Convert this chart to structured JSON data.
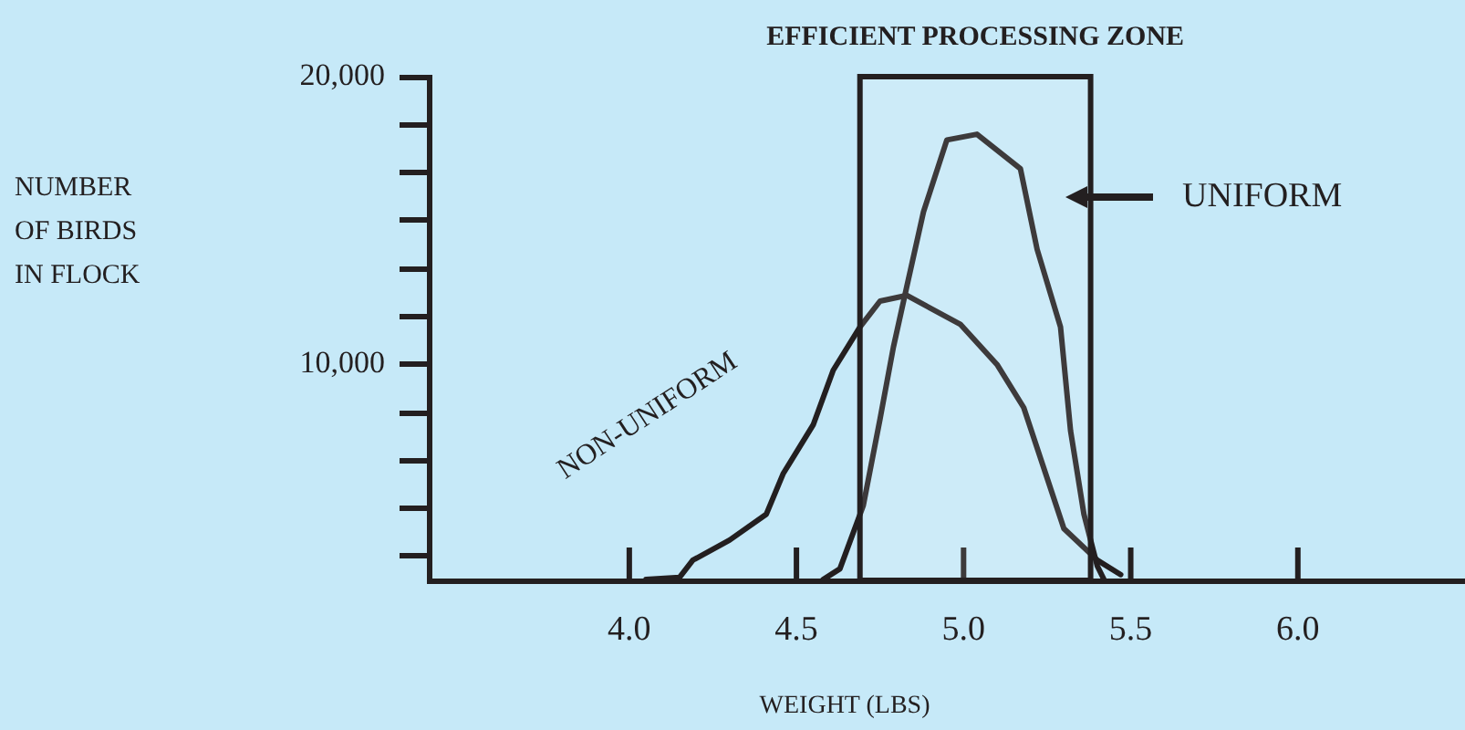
{
  "chart_data": {
    "type": "line",
    "xlabel": "WEIGHT (LBS)",
    "annotations": [
      "NUMBER OF BIRDS IN FLOCK"
    ],
    "xlim": [
      3.4,
      6.5
    ],
    "ylim": [
      2500,
      20000
    ],
    "xticks": [
      {
        "value": 4,
        "label": "4.0"
      },
      {
        "value": 4.5,
        "label": "4.5"
      },
      {
        "value": 5,
        "label": "5.0"
      },
      {
        "value": 5.5,
        "label": "5.5"
      },
      {
        "value": 6,
        "label": "6.0"
      }
    ],
    "yticks": [
      {
        "value": 3333,
        "label": null
      },
      {
        "value": 5000,
        "label": null
      },
      {
        "value": 6667,
        "label": null
      },
      {
        "value": 8333,
        "label": null
      },
      {
        "value": 10000,
        "label": "10,000"
      },
      {
        "value": 11667,
        "label": null
      },
      {
        "value": 13333,
        "label": null
      },
      {
        "value": 15000,
        "label": null
      },
      {
        "value": 16667,
        "label": null
      },
      {
        "value": 18333,
        "label": null
      },
      {
        "value": 20000,
        "label": "20,000"
      }
    ],
    "series": [
      {
        "name": "NON-UNIFORM",
        "color": "#231f20",
        "x": [
          4.05,
          4.15,
          4.19,
          4.3,
          4.41,
          4.46,
          4.55,
          4.61,
          4.69,
          4.75,
          4.83,
          4.99,
          5.1,
          5.18,
          5.24,
          5.3,
          5.4,
          5.47
        ],
        "values": [
          2530,
          2600,
          3200,
          3900,
          4800,
          6200,
          7900,
          9800,
          11300,
          12200,
          12400,
          11400,
          10000,
          8500,
          6400,
          4300,
          3200,
          2700
        ]
      },
      {
        "name": "UNIFORM",
        "color": "#231f20",
        "x": [
          4.58,
          4.63,
          4.7,
          4.75,
          4.79,
          4.83,
          4.88,
          4.95,
          5.04,
          5.17,
          5.22,
          5.29,
          5.32,
          5.36,
          5.4,
          5.42
        ],
        "values": [
          2530,
          2900,
          5100,
          8100,
          10600,
          12700,
          15300,
          17800,
          18000,
          16800,
          14000,
          11300,
          7700,
          4800,
          3000,
          2530
        ]
      }
    ],
    "bands": [
      {
        "axis": "x",
        "from": 4.69,
        "to": 5.38,
        "label": "EFFICIENT PROCESSING ZONE"
      }
    ],
    "marker": "none",
    "line_style": "solid",
    "legend": "right",
    "grid": false
  }
}
